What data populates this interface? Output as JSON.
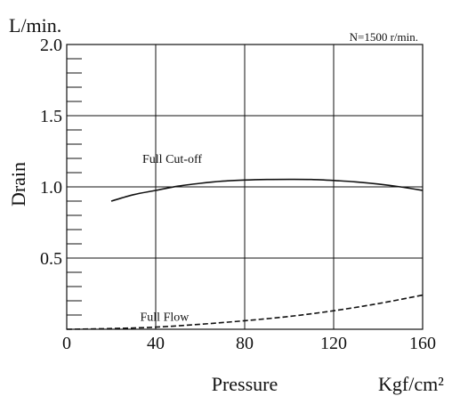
{
  "chart_data": {
    "type": "line",
    "unit_label": "L/min.",
    "ylabel": "Drain",
    "xlabel": "Pressure",
    "x_unit_label": "Kgf/cm²",
    "condition_note": "N=1500 r/min.",
    "xlim": [
      0,
      160
    ],
    "ylim": [
      0,
      2.0
    ],
    "x_ticks": [
      0,
      40,
      80,
      120,
      160
    ],
    "y_ticks": [
      0.5,
      1.0,
      1.5,
      2.0
    ],
    "x_tick_labels": [
      "0",
      "40",
      "80",
      "120",
      "160"
    ],
    "y_tick_labels": [
      "0.5",
      "1.0",
      "1.5",
      "2.0"
    ],
    "y_minor_step": 0.1,
    "grid": true,
    "series": [
      {
        "name": "Full Cut-off",
        "style": "solid",
        "color": "#111111",
        "points": [
          [
            20,
            0.9
          ],
          [
            30,
            0.945
          ],
          [
            40,
            0.975
          ],
          [
            50,
            1.005
          ],
          [
            60,
            1.025
          ],
          [
            70,
            1.04
          ],
          [
            80,
            1.048
          ],
          [
            90,
            1.052
          ],
          [
            100,
            1.053
          ],
          [
            110,
            1.052
          ],
          [
            120,
            1.045
          ],
          [
            130,
            1.035
          ],
          [
            140,
            1.02
          ],
          [
            150,
            1.0
          ],
          [
            160,
            0.975
          ]
        ]
      },
      {
        "name": "Full Flow",
        "style": "dashed",
        "color": "#111111",
        "points": [
          [
            0,
            0.0
          ],
          [
            20,
            0.005
          ],
          [
            40,
            0.015
          ],
          [
            60,
            0.035
          ],
          [
            80,
            0.06
          ],
          [
            100,
            0.09
          ],
          [
            120,
            0.13
          ],
          [
            140,
            0.18
          ],
          [
            160,
            0.24
          ]
        ]
      }
    ]
  }
}
